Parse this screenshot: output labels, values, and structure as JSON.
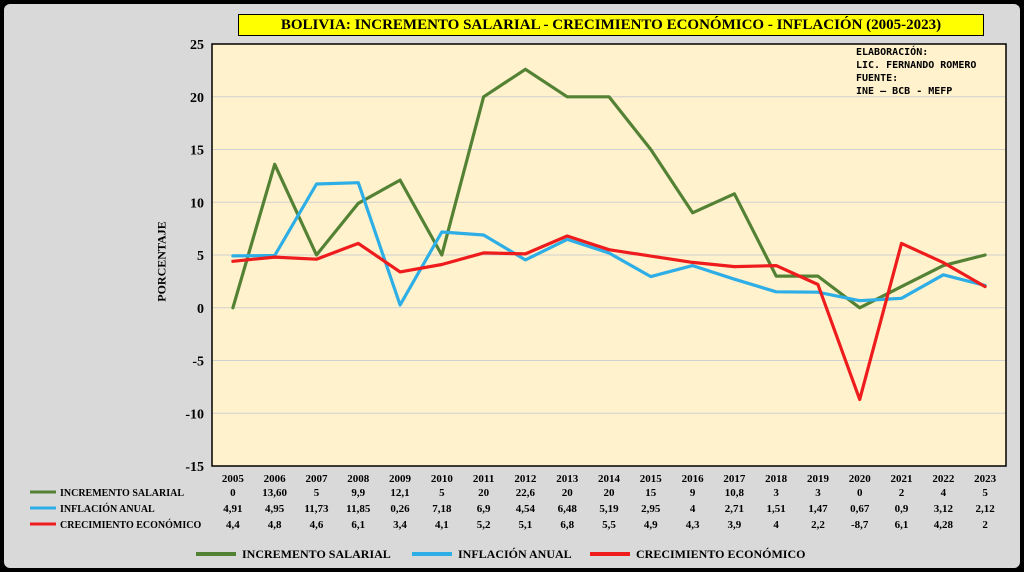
{
  "chart_data": {
    "type": "line",
    "title": "BOLIVIA: INCREMENTO SALARIAL - CRECIMIENTO ECONÓMICO - INFLACIÓN (2005-2023)",
    "ylabel": "PORCENTAJE",
    "xlabel": "",
    "ylim": [
      -15,
      25
    ],
    "yticks": [
      "25",
      "20",
      "15",
      "10",
      "5",
      "0",
      "-5",
      "-10",
      "-15"
    ],
    "grid": true,
    "background": "#fff2cc",
    "legend_position": "bottom",
    "categories": [
      "2005",
      "2006",
      "2007",
      "2008",
      "2009",
      "2010",
      "2011",
      "2012",
      "2013",
      "2014",
      "2015",
      "2016",
      "2017",
      "2018",
      "2019",
      "2020",
      "2021",
      "2022",
      "2023"
    ],
    "series": [
      {
        "name": "INCREMENTO SALARIAL",
        "color": "#548235",
        "values": [
          0,
          13.6,
          5,
          9.9,
          12.1,
          5,
          20,
          22.6,
          20,
          20,
          15,
          9,
          10.8,
          3,
          3,
          0,
          2,
          4,
          5
        ],
        "labels": [
          "0",
          "13,60",
          "5",
          "9,9",
          "12,1",
          "5",
          "20",
          "22,6",
          "20",
          "20",
          "15",
          "9",
          "10,8",
          "3",
          "3",
          "0",
          "2",
          "4",
          "5"
        ]
      },
      {
        "name": "INFLACIÓN ANUAL",
        "color": "#2eaee6",
        "values": [
          4.91,
          4.95,
          11.73,
          11.85,
          0.26,
          7.18,
          6.9,
          4.54,
          6.48,
          5.19,
          2.95,
          4,
          2.71,
          1.51,
          1.47,
          0.67,
          0.9,
          3.12,
          2.12
        ],
        "labels": [
          "4,91",
          "4,95",
          "11,73",
          "11,85",
          "0,26",
          "7,18",
          "6,9",
          "4,54",
          "6,48",
          "5,19",
          "2,95",
          "4",
          "2,71",
          "1,51",
          "1,47",
          "0,67",
          "0,9",
          "3,12",
          "2,12"
        ]
      },
      {
        "name": "CRECIMIENTO ECONÓMICO",
        "color": "#ee1c1c",
        "values": [
          4.4,
          4.8,
          4.6,
          6.1,
          3.4,
          4.1,
          5.2,
          5.1,
          6.8,
          5.5,
          4.9,
          4.3,
          3.9,
          4,
          2.2,
          -8.7,
          6.1,
          4.28,
          2
        ],
        "labels": [
          "4,4",
          "4,8",
          "4,6",
          "6,1",
          "3,4",
          "4,1",
          "5,2",
          "5,1",
          "6,8",
          "5,5",
          "4,9",
          "4,3",
          "3,9",
          "4",
          "2,2",
          "-8,7",
          "6,1",
          "4,28",
          "2"
        ]
      }
    ],
    "annotation": [
      "ELABORACIÓN:",
      "LIC. FERNANDO ROMERO",
      "FUENTE:",
      "INE – BCB - MEFP"
    ]
  }
}
